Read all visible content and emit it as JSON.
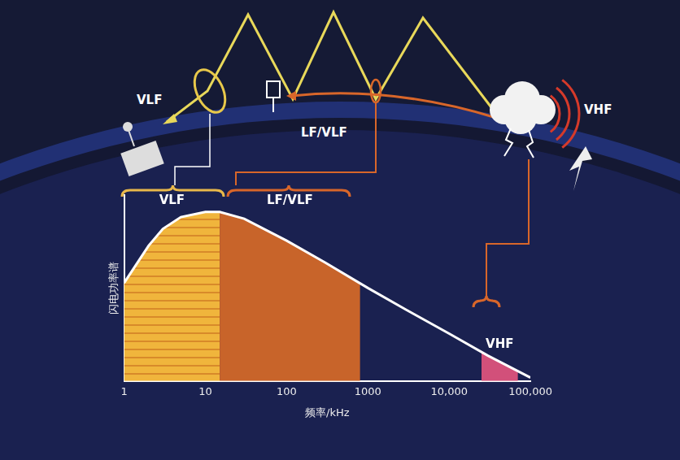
{
  "chart_data": {
    "type": "line",
    "x_label": "频率/kHz",
    "y_label": "闪电功率谱",
    "x": [
      1,
      2,
      3,
      5,
      10,
      15,
      30,
      100,
      300,
      1000,
      3000,
      10000,
      30000,
      100000
    ],
    "values": [
      0.58,
      0.8,
      0.9,
      0.97,
      1.0,
      1.0,
      0.96,
      0.83,
      0.7,
      0.55,
      0.42,
      0.28,
      0.15,
      0.02
    ],
    "color": "#ffffff",
    "log": "x",
    "xlim": [
      1,
      100000
    ],
    "xticks": [
      1,
      10,
      100,
      1000,
      {
        "value": 10000,
        "label": "10,000"
      },
      {
        "value": 100000,
        "label": "100,000"
      }
    ],
    "ylim": [
      0,
      1.1
    ],
    "yticks": [],
    "grid": false,
    "tick_labels": "x",
    "bands": [
      {
        "name": "VLF",
        "from": 1,
        "to": 15,
        "color": "#f0b53c"
      },
      {
        "name": "LF/VLF",
        "from": 15,
        "to": 800,
        "color": "#c8642a"
      },
      {
        "name": "VHF",
        "from": 25000,
        "to": 70000,
        "color": "#d2507a"
      }
    ]
  },
  "diagram": {
    "labels": [
      "VLF",
      "LF/VLF",
      "VHF"
    ]
  }
}
